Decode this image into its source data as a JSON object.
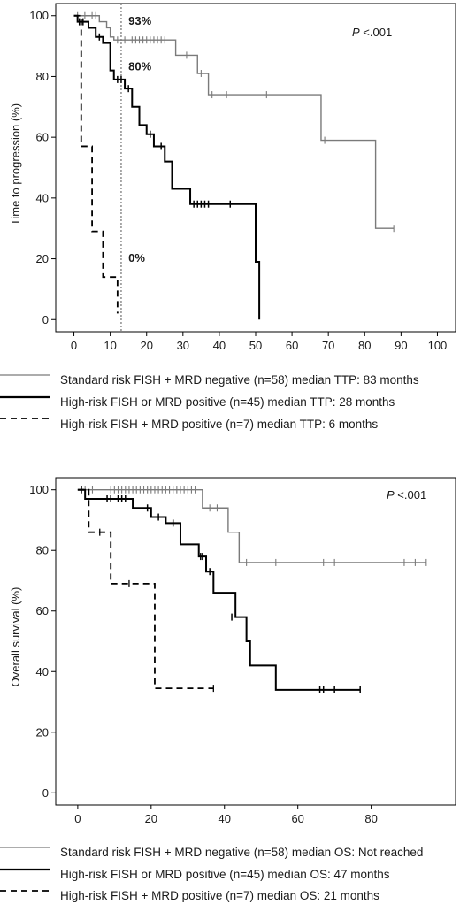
{
  "colors": {
    "standard": "#7a7a7a",
    "high_risk": "#000000",
    "high_risk_dashed": "#000000",
    "axis": "#000000"
  },
  "chart_data": [
    {
      "type": "line",
      "title": "",
      "xlabel": "",
      "ylabel": "Time to progression (%)",
      "xlim": [
        -5,
        105
      ],
      "ylim": [
        -4,
        104
      ],
      "xticks": [
        0,
        10,
        20,
        30,
        40,
        50,
        60,
        70,
        80,
        90,
        100
      ],
      "yticks": [
        0,
        20,
        40,
        60,
        80,
        100
      ],
      "xtick_labels": [
        "0",
        "10",
        "20",
        "30",
        "40",
        "50",
        "60",
        "70",
        "80",
        "90",
        "100"
      ],
      "ytick_labels": [
        "0",
        "20",
        "40",
        "60",
        "80",
        "100"
      ],
      "p_value": {
        "prefix": "P",
        "value": " <.001"
      },
      "reference_line_x": 13,
      "annotations": [
        {
          "text": "93%",
          "x": 15,
          "y": 97
        },
        {
          "text": "80%",
          "x": 15,
          "y": 82
        },
        {
          "text": "0%",
          "x": 15,
          "y": 19
        }
      ],
      "series": [
        {
          "name": "Standard risk FISH + MRD negative (n=58) median TTP: 83 months",
          "style": "gray",
          "steps": [
            [
              0,
              100
            ],
            [
              7,
              98
            ],
            [
              9,
              96
            ],
            [
              10,
              93
            ],
            [
              11,
              92
            ],
            [
              27,
              92
            ],
            [
              28,
              87
            ],
            [
              33,
              87
            ],
            [
              34,
              81
            ],
            [
              36,
              81
            ],
            [
              37,
              74
            ],
            [
              68,
              74
            ],
            [
              68,
              59
            ],
            [
              83,
              59
            ],
            [
              83,
              30
            ],
            [
              88,
              30
            ]
          ],
          "censored": [
            [
              1,
              100
            ],
            [
              3,
              100
            ],
            [
              5,
              100
            ],
            [
              6,
              100
            ],
            [
              12,
              92
            ],
            [
              14,
              92
            ],
            [
              16,
              92
            ],
            [
              17,
              92
            ],
            [
              18,
              92
            ],
            [
              19,
              92
            ],
            [
              20,
              92
            ],
            [
              21,
              92
            ],
            [
              22,
              92
            ],
            [
              23,
              92
            ],
            [
              24,
              92
            ],
            [
              25,
              92
            ],
            [
              31,
              87
            ],
            [
              35,
              81
            ],
            [
              38,
              74
            ],
            [
              42,
              74
            ],
            [
              53,
              74
            ],
            [
              69,
              59
            ],
            [
              88,
              30
            ]
          ]
        },
        {
          "name": "High-risk FISH or MRD positive (n=45) median TTP: 28 months",
          "style": "solid",
          "steps": [
            [
              0,
              100
            ],
            [
              1,
              98
            ],
            [
              4,
              96
            ],
            [
              6,
              93
            ],
            [
              8,
              91
            ],
            [
              10,
              82
            ],
            [
              11,
              79
            ],
            [
              14,
              76
            ],
            [
              16,
              70
            ],
            [
              18,
              64
            ],
            [
              20,
              61
            ],
            [
              22,
              57
            ],
            [
              25,
              52
            ],
            [
              27,
              43
            ],
            [
              31,
              43
            ],
            [
              32,
              38
            ],
            [
              50,
              38
            ],
            [
              50,
              19
            ],
            [
              51,
              19
            ],
            [
              51,
              0
            ]
          ],
          "censored": [
            [
              1.5,
              98
            ],
            [
              2.5,
              98
            ],
            [
              7,
              93
            ],
            [
              12,
              79
            ],
            [
              13,
              79
            ],
            [
              15,
              76
            ],
            [
              21,
              61
            ],
            [
              24,
              57
            ],
            [
              33,
              38
            ],
            [
              34,
              38
            ],
            [
              35,
              38
            ],
            [
              36,
              38
            ],
            [
              37,
              38
            ],
            [
              43,
              38
            ]
          ]
        },
        {
          "name": "High-risk FISH + MRD positive (n=7) median TTP: 6 months",
          "style": "dashed",
          "steps": [
            [
              0,
              100
            ],
            [
              2,
              100
            ],
            [
              2,
              57
            ],
            [
              5,
              57
            ],
            [
              5,
              29
            ],
            [
              8,
              29
            ],
            [
              8,
              14
            ],
            [
              10,
              14
            ],
            [
              10,
              14
            ],
            [
              12,
              14
            ],
            [
              12,
              2
            ]
          ],
          "censored": []
        }
      ]
    },
    {
      "type": "line",
      "title": "",
      "xlabel": "",
      "ylabel": "Overall survival (%)",
      "xlim": [
        -6,
        103
      ],
      "ylim": [
        -4,
        104
      ],
      "xticks": [
        0,
        20,
        40,
        60,
        80
      ],
      "yticks": [
        0,
        20,
        40,
        60,
        80,
        100
      ],
      "xtick_labels": [
        "0",
        "20",
        "40",
        "60",
        "80"
      ],
      "ytick_labels": [
        "0",
        "20",
        "40",
        "60",
        "80",
        "100"
      ],
      "p_value": {
        "prefix": "P",
        "value": " <.001"
      },
      "series": [
        {
          "name": "Standard risk FISH + MRD negative (n=58) median OS: Not reached",
          "style": "gray",
          "steps": [
            [
              0,
              100
            ],
            [
              34,
              100
            ],
            [
              34,
              94
            ],
            [
              41,
              94
            ],
            [
              41,
              86
            ],
            [
              44,
              86
            ],
            [
              44,
              76
            ],
            [
              95,
              76
            ]
          ],
          "censored": [
            [
              2,
              100
            ],
            [
              4,
              100
            ],
            [
              9,
              100
            ],
            [
              10,
              100
            ],
            [
              11,
              100
            ],
            [
              12,
              100
            ],
            [
              13,
              100
            ],
            [
              14,
              100
            ],
            [
              15,
              100
            ],
            [
              16,
              100
            ],
            [
              17,
              100
            ],
            [
              18,
              100
            ],
            [
              19,
              100
            ],
            [
              20,
              100
            ],
            [
              21,
              100
            ],
            [
              22,
              100
            ],
            [
              23,
              100
            ],
            [
              24,
              100
            ],
            [
              25,
              100
            ],
            [
              26,
              100
            ],
            [
              27,
              100
            ],
            [
              28,
              100
            ],
            [
              29,
              100
            ],
            [
              30,
              100
            ],
            [
              31,
              100
            ],
            [
              32,
              100
            ],
            [
              36,
              94
            ],
            [
              38,
              94
            ],
            [
              46,
              76
            ],
            [
              54,
              76
            ],
            [
              67,
              76
            ],
            [
              70,
              76
            ],
            [
              89,
              76
            ],
            [
              92,
              76
            ],
            [
              95,
              76
            ]
          ]
        },
        {
          "name": "High-risk FISH or MRD positive (n=45) median OS: 47 months",
          "style": "solid",
          "steps": [
            [
              0,
              100
            ],
            [
              1,
              100
            ],
            [
              2,
              97
            ],
            [
              15,
              97
            ],
            [
              15,
              94
            ],
            [
              20,
              94
            ],
            [
              20,
              91
            ],
            [
              24,
              91
            ],
            [
              24,
              89
            ],
            [
              28,
              89
            ],
            [
              28,
              82
            ],
            [
              33,
              82
            ],
            [
              33,
              78
            ],
            [
              35,
              78
            ],
            [
              35,
              73
            ],
            [
              37,
              73
            ],
            [
              37,
              66
            ],
            [
              43,
              66
            ],
            [
              43,
              58
            ],
            [
              46,
              58
            ],
            [
              46,
              50
            ],
            [
              47,
              50
            ],
            [
              47,
              42
            ],
            [
              54,
              42
            ],
            [
              54,
              34
            ],
            [
              77,
              34
            ]
          ],
          "censored": [
            [
              1,
              100
            ],
            [
              8,
              97
            ],
            [
              9,
              97
            ],
            [
              11,
              97
            ],
            [
              12,
              97
            ],
            [
              13,
              97
            ],
            [
              19,
              94
            ],
            [
              22,
              91
            ],
            [
              26,
              89
            ],
            [
              33.5,
              78
            ],
            [
              34,
              78
            ],
            [
              36,
              73
            ],
            [
              42,
              58
            ],
            [
              66,
              34
            ],
            [
              67,
              34
            ],
            [
              70,
              34
            ],
            [
              77,
              34
            ]
          ]
        },
        {
          "name": "High-risk FISH + MRD positive (n=7) median OS: 21 months",
          "style": "dashed",
          "steps": [
            [
              0,
              100
            ],
            [
              3,
              100
            ],
            [
              3,
              86
            ],
            [
              9,
              86
            ],
            [
              9,
              69
            ],
            [
              21,
              69
            ],
            [
              21,
              34.5
            ],
            [
              37,
              34.5
            ]
          ],
          "censored": [
            [
              6,
              86
            ],
            [
              14,
              69
            ],
            [
              37,
              34.5
            ]
          ]
        }
      ]
    }
  ]
}
